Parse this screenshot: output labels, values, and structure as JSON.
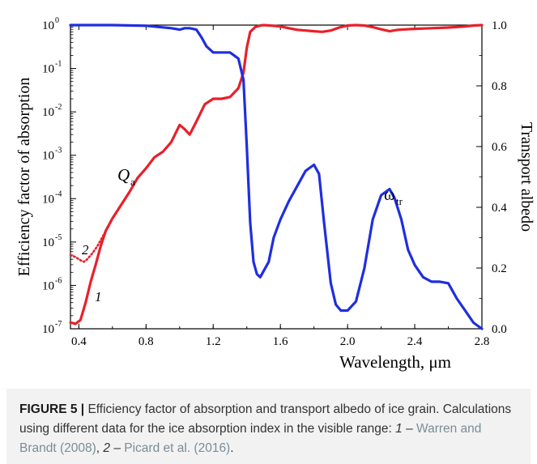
{
  "chart_data": {
    "type": "line",
    "xlabel": "Wavelength, μm",
    "ylabel_left": "Efficiency factor of absorption",
    "ylabel_right": "Transport albedo",
    "xlim": [
      0.35,
      2.8
    ],
    "x_ticks": [
      "0.4",
      "0.8",
      "1.2",
      "1.6",
      "2.0",
      "2.4",
      "2.8"
    ],
    "y_left_log_scale": true,
    "y_left_ticks": [
      {
        "base": "10",
        "exp": "0"
      },
      {
        "base": "10",
        "exp": "-1"
      },
      {
        "base": "10",
        "exp": "-2"
      },
      {
        "base": "10",
        "exp": "-3"
      },
      {
        "base": "10",
        "exp": "-4"
      },
      {
        "base": "10",
        "exp": "-5"
      },
      {
        "base": "10",
        "exp": "-6"
      },
      {
        "base": "10",
        "exp": "-7"
      }
    ],
    "y_right_ticks": [
      "0.0",
      "0.2",
      "0.4",
      "0.6",
      "0.8",
      "1.0"
    ],
    "ylim_right": [
      0,
      1
    ],
    "annotations": {
      "qa_main": "Q",
      "qa_sub": "a",
      "omega_main": "ω",
      "omega_sub": "tr",
      "curve1": "1",
      "curve2": "2"
    },
    "series": [
      {
        "name": "Q_a (1)",
        "axis": "left",
        "color": "#e8202a",
        "style": "solid",
        "x": [
          0.35,
          0.38,
          0.41,
          0.44,
          0.47,
          0.5,
          0.53,
          0.56,
          0.6,
          0.65,
          0.7,
          0.75,
          0.8,
          0.85,
          0.9,
          0.95,
          1.0,
          1.03,
          1.06,
          1.1,
          1.15,
          1.2,
          1.25,
          1.3,
          1.35,
          1.38,
          1.4,
          1.42,
          1.45,
          1.48,
          1.5,
          1.55,
          1.6,
          1.65,
          1.7,
          1.75,
          1.8,
          1.85,
          1.9,
          1.95,
          2.0,
          2.05,
          2.1,
          2.15,
          2.2,
          2.25,
          2.3,
          2.4,
          2.5,
          2.6,
          2.7,
          2.75,
          2.8
        ],
        "y": [
          1.4e-07,
          1.3e-07,
          1.6e-07,
          4e-07,
          1.2e-06,
          3e-06,
          8e-06,
          1.8e-05,
          3.5e-05,
          7e-05,
          0.00014,
          0.0003,
          0.0005,
          0.0009,
          0.0012,
          0.002,
          0.005,
          0.004,
          0.003,
          0.006,
          0.015,
          0.02,
          0.02,
          0.022,
          0.035,
          0.08,
          0.3,
          0.7,
          0.9,
          0.98,
          1,
          0.97,
          0.93,
          0.85,
          0.78,
          0.75,
          0.72,
          0.7,
          0.75,
          0.88,
          0.98,
          1,
          0.98,
          0.9,
          0.8,
          0.72,
          0.78,
          0.82,
          0.85,
          0.88,
          0.93,
          0.98,
          1
        ]
      },
      {
        "name": "Q_a (2)",
        "axis": "left",
        "color": "#e8202a",
        "style": "dotted",
        "x": [
          0.35,
          0.38,
          0.41,
          0.43,
          0.45,
          0.48,
          0.51,
          0.54,
          0.56
        ],
        "y": [
          5e-06,
          4.5e-06,
          3.8e-06,
          3.5e-06,
          4e-06,
          5.5e-06,
          8e-06,
          1.3e-05,
          1.8e-05
        ]
      },
      {
        "name": "ω_tr",
        "axis": "right",
        "color": "#1f2ee0",
        "style": "solid",
        "x": [
          0.35,
          0.6,
          0.8,
          0.95,
          1.0,
          1.03,
          1.06,
          1.1,
          1.13,
          1.16,
          1.2,
          1.25,
          1.3,
          1.35,
          1.38,
          1.4,
          1.42,
          1.44,
          1.46,
          1.48,
          1.5,
          1.53,
          1.56,
          1.6,
          1.65,
          1.7,
          1.75,
          1.8,
          1.83,
          1.86,
          1.9,
          1.93,
          1.96,
          2.0,
          2.05,
          2.1,
          2.15,
          2.2,
          2.25,
          2.28,
          2.32,
          2.36,
          2.4,
          2.45,
          2.5,
          2.55,
          2.6,
          2.65,
          2.7,
          2.75,
          2.8
        ],
        "y": [
          1.0,
          1.0,
          0.998,
          0.99,
          0.985,
          0.99,
          0.99,
          0.985,
          0.96,
          0.93,
          0.91,
          0.91,
          0.91,
          0.89,
          0.82,
          0.6,
          0.35,
          0.22,
          0.18,
          0.17,
          0.19,
          0.22,
          0.3,
          0.36,
          0.42,
          0.47,
          0.52,
          0.54,
          0.51,
          0.35,
          0.15,
          0.08,
          0.06,
          0.06,
          0.09,
          0.2,
          0.36,
          0.44,
          0.46,
          0.43,
          0.36,
          0.26,
          0.21,
          0.17,
          0.155,
          0.155,
          0.15,
          0.1,
          0.06,
          0.02,
          0.0
        ]
      }
    ]
  },
  "caption": {
    "figure_label": "FIGURE 5 |",
    "text_main": " Efficiency factor of absorption and transport albedo of ice grain. Calculations using different data for the ice absorption index in the visible range: ",
    "item1_num": "1",
    "item1_sep": " – ",
    "item1_ref": "Warren and Brandt (2008)",
    "between": ", ",
    "item2_num": "2",
    "item2_sep": " – ",
    "item2_ref": "Picard et al. (2016)",
    "end": "."
  }
}
